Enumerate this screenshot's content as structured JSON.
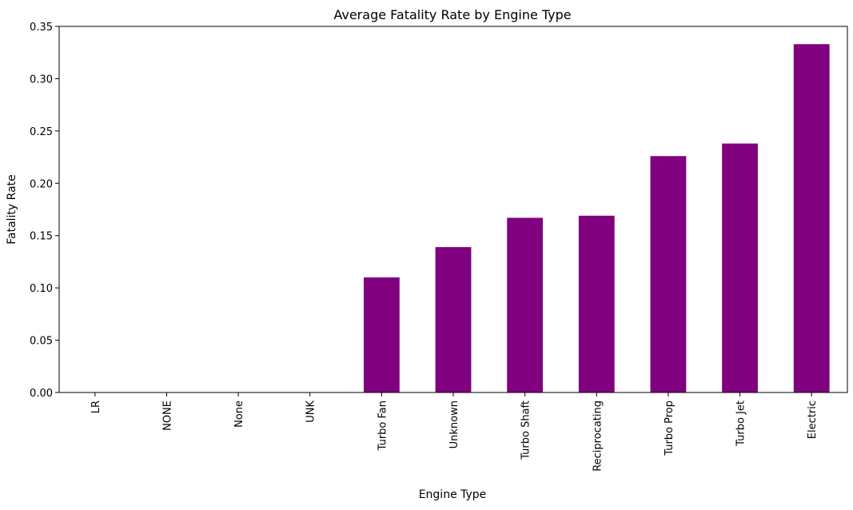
{
  "chart_data": {
    "type": "bar",
    "title": "Average Fatality Rate by Engine Type",
    "xlabel": "Engine Type",
    "ylabel": "Fatality Rate",
    "categories": [
      "LR",
      "NONE",
      "None",
      "UNK",
      "Turbo Fan",
      "Unknown",
      "Turbo Shaft",
      "Reciprocating",
      "Turbo Prop",
      "Turbo Jet",
      "Electric"
    ],
    "values": [
      0.0,
      0.0,
      0.0,
      0.0,
      0.11,
      0.139,
      0.167,
      0.169,
      0.226,
      0.238,
      0.333
    ],
    "ylim": [
      0,
      0.35
    ],
    "yticks": [
      "0.00",
      "0.05",
      "0.10",
      "0.15",
      "0.20",
      "0.25",
      "0.30",
      "0.35"
    ],
    "bar_color": "#800080",
    "grid": false,
    "legend": "none"
  }
}
